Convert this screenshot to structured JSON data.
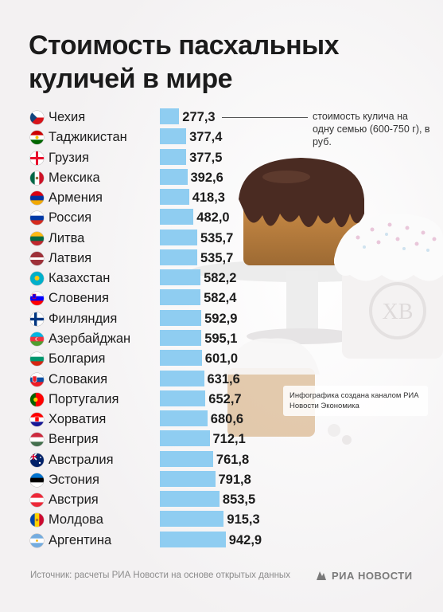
{
  "title": "Стоимость пасхальных куличей в мире",
  "note": "стоимость кулича на одну семью (600-750 г), в руб.",
  "credit": "Инфографика создана каналом РИА Новости Экономика",
  "source": "Источник: расчеты РИА Новости на основе открытых данных",
  "logo": "РИА НОВОСТИ",
  "colors": {
    "bar": "#8fcdf1",
    "background": "#f3f1f2",
    "text": "#1c1c1c"
  },
  "chart_data": {
    "type": "bar",
    "orientation": "horizontal",
    "categories": [
      "Чехия",
      "Таджикистан",
      "Грузия",
      "Мексика",
      "Армения",
      "Россия",
      "Литва",
      "Латвия",
      "Казахстан",
      "Словения",
      "Финляндия",
      "Азербайджан",
      "Болгария",
      "Словакия",
      "Португалия",
      "Хорватия",
      "Венгрия",
      "Австралия",
      "Эстония",
      "Австрия",
      "Молдова",
      "Аргентина"
    ],
    "values": [
      277.3,
      377.4,
      377.5,
      392.6,
      418.3,
      482.0,
      535.7,
      535.7,
      582.2,
      582.4,
      592.9,
      595.1,
      601.0,
      631.6,
      652.7,
      680.6,
      712.1,
      761.8,
      791.8,
      853.5,
      915.3,
      942.9
    ],
    "value_labels": [
      "277,3",
      "377,4",
      "377,5",
      "392,6",
      "418,3",
      "482,0",
      "535,7",
      "535,7",
      "582,2",
      "582,4",
      "592,9",
      "595,1",
      "601,0",
      "631,6",
      "652,7",
      "680,6",
      "712,1",
      "761,8",
      "791,8",
      "853,5",
      "915,3",
      "942,9"
    ],
    "flags": [
      "cz",
      "tj",
      "ge",
      "mx",
      "am",
      "ru",
      "lt",
      "lv",
      "kz",
      "si",
      "fi",
      "az",
      "bg",
      "sk",
      "pt",
      "hr",
      "hu",
      "au",
      "ee",
      "at",
      "md",
      "ar"
    ],
    "grid": false,
    "legend": "none"
  }
}
